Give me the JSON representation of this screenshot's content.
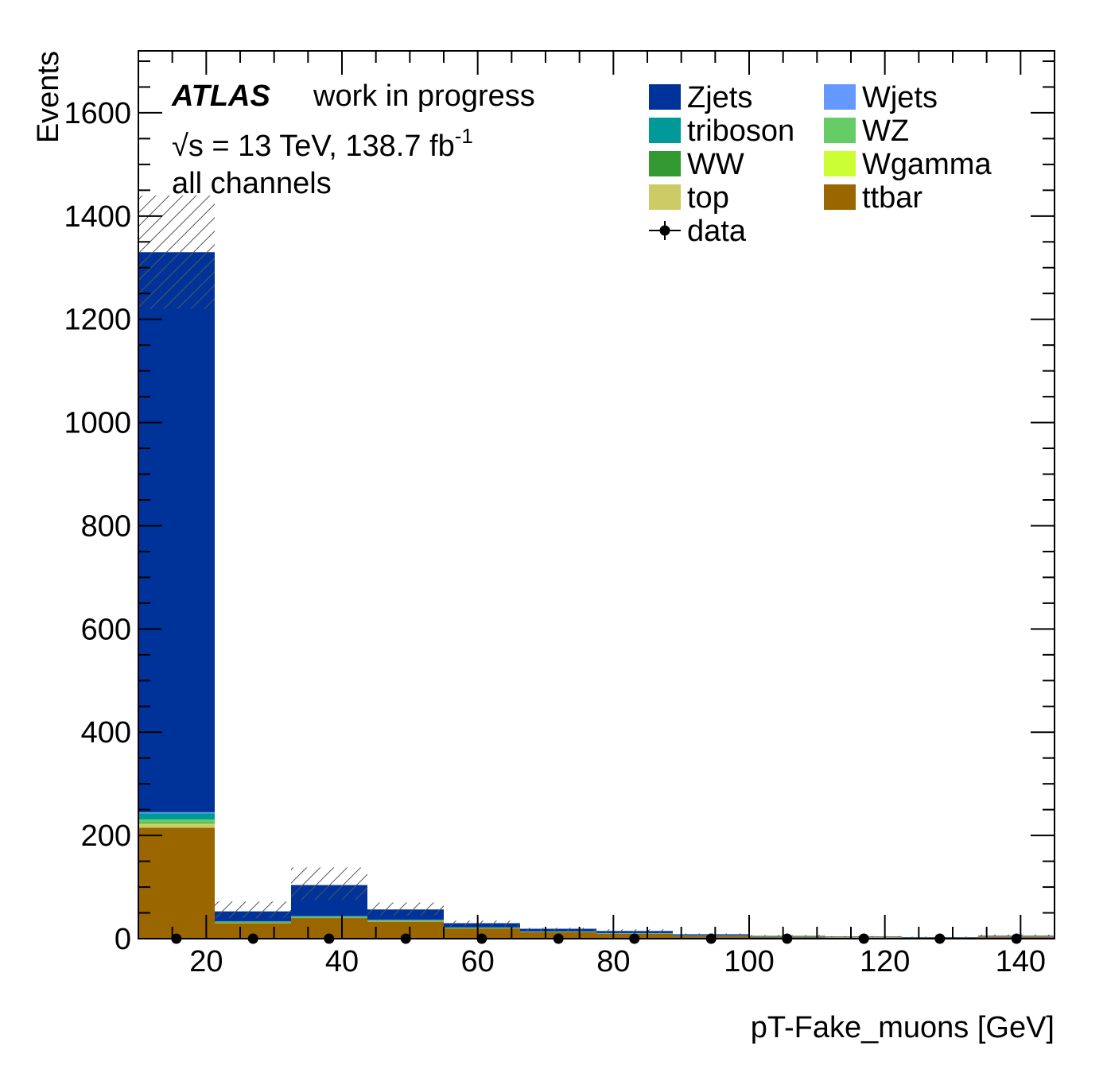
{
  "chart_data": {
    "type": "bar",
    "stacked": true,
    "xlabel": "pT-Fake_muons [GeV]",
    "ylabel": "Events",
    "xlim": [
      10,
      145
    ],
    "ylim": [
      0,
      1720
    ],
    "x_ticks": [
      20,
      40,
      60,
      80,
      100,
      120,
      140
    ],
    "y_ticks": [
      0,
      200,
      400,
      600,
      800,
      1000,
      1200,
      1400,
      1600
    ],
    "bin_edges": [
      10,
      21.25,
      32.5,
      43.75,
      55,
      66.25,
      77.5,
      88.75,
      100,
      111.25,
      122.5,
      133.75,
      145
    ],
    "series": [
      {
        "name": "ttbar",
        "color": "#996600",
        "values": [
          215,
          30,
          40,
          33,
          20,
          13,
          10,
          6,
          4,
          3,
          2,
          4
        ]
      },
      {
        "name": "top",
        "color": "#cccc66",
        "values": [
          7,
          1,
          1,
          1,
          0.5,
          0.3,
          0.2,
          0.1,
          0.1,
          0.1,
          0.1,
          0.1
        ]
      },
      {
        "name": "Wgamma",
        "color": "#ccff33",
        "values": [
          1,
          0.2,
          0.2,
          0.2,
          0.1,
          0.1,
          0.1,
          0.1,
          0,
          0,
          0,
          0
        ]
      },
      {
        "name": "WW",
        "color": "#339933",
        "values": [
          2,
          0.4,
          0.4,
          0.3,
          0.2,
          0.1,
          0.1,
          0.1,
          0,
          0,
          0,
          0
        ]
      },
      {
        "name": "WZ",
        "color": "#66cc66",
        "values": [
          6,
          0.8,
          0.8,
          0.6,
          0.4,
          0.2,
          0.2,
          0.1,
          0.1,
          0,
          0,
          0
        ]
      },
      {
        "name": "triboson",
        "color": "#009999",
        "values": [
          12,
          1,
          1,
          1,
          0.5,
          0.3,
          0.2,
          0.1,
          0.1,
          0,
          0,
          0
        ]
      },
      {
        "name": "Wjets",
        "color": "#6699ff",
        "values": [
          2,
          0.5,
          0.5,
          0.5,
          0.3,
          0.2,
          0.1,
          0.1,
          0,
          0,
          0,
          0
        ]
      },
      {
        "name": "Zjets",
        "color": "#003399",
        "values": [
          1085,
          19,
          60,
          20,
          8,
          5,
          4,
          2,
          1,
          1,
          1,
          1.5
        ]
      }
    ],
    "uncertainty_band": {
      "low": [
        1220,
        40,
        75,
        45,
        24,
        15,
        11,
        7,
        4,
        3,
        2,
        5
      ],
      "high": [
        1440,
        72,
        138,
        70,
        35,
        21,
        18,
        10,
        7,
        5,
        4,
        8
      ]
    },
    "data_points": {
      "name": "data",
      "x": [
        15.6,
        26.9,
        38.1,
        49.4,
        60.6,
        71.9,
        83.1,
        94.4,
        105.6,
        116.9,
        128.1,
        139.4
      ],
      "y": [
        0,
        0,
        0,
        0,
        0,
        0,
        0,
        0,
        0,
        0,
        0,
        0
      ]
    },
    "legend_placement": "top-right",
    "legend_order": [
      "Zjets",
      "Wjets",
      "triboson",
      "WZ",
      "WW",
      "Wgamma",
      "top",
      "ttbar",
      "data"
    ]
  },
  "annotations": {
    "experiment": "ATLAS",
    "status": "work in progress",
    "energy": "√s = 13 TeV, 138.7 fb",
    "energy_sup": "-1",
    "channel": "all channels"
  }
}
